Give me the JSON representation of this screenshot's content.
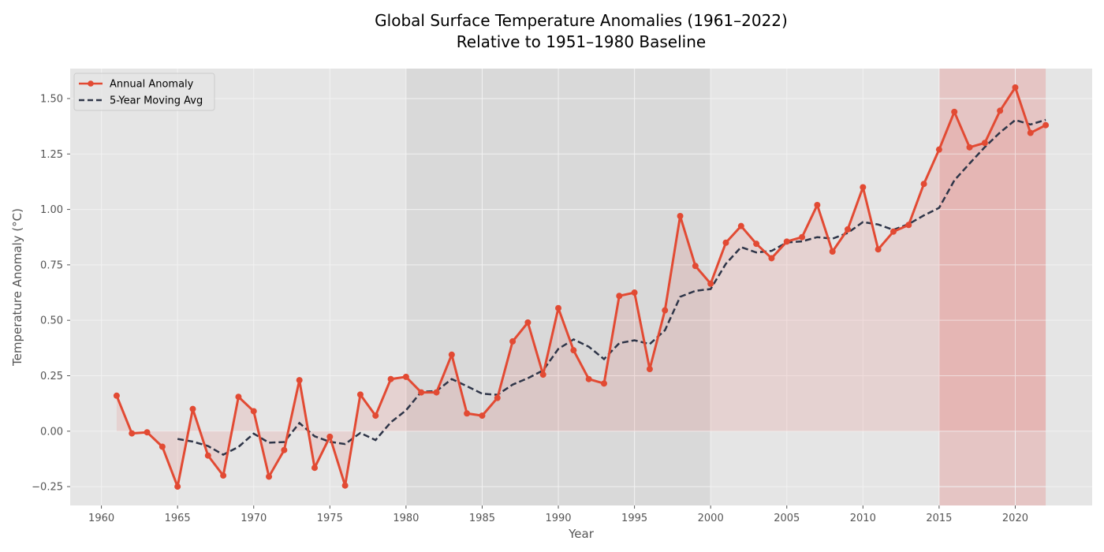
{
  "chart_data": {
    "type": "line",
    "title_line1": "Global Surface Temperature Anomalies (1961–2022)",
    "title_line2": "Relative to 1951–1980 Baseline",
    "xlabel": "Year",
    "ylabel": "Temperature Anomaly (°C)",
    "xlim": [
      1957.95,
      2025.05
    ],
    "ylim": [
      -0.335,
      1.635
    ],
    "xticks": [
      1960,
      1965,
      1970,
      1975,
      1980,
      1985,
      1990,
      1995,
      2000,
      2005,
      2010,
      2015,
      2020
    ],
    "xtick_labels": [
      "1960",
      "1965",
      "1970",
      "1975",
      "1980",
      "1985",
      "1990",
      "1995",
      "2000",
      "2005",
      "2010",
      "2015",
      "2020"
    ],
    "yticks": [
      -0.25,
      0,
      0.25,
      0.5,
      0.75,
      1.0,
      1.25,
      1.5
    ],
    "ytick_labels": [
      "−0.25",
      "0.00",
      "0.25",
      "0.50",
      "0.75",
      "1.00",
      "1.25",
      "1.50"
    ],
    "grid": true,
    "legend_position": "top-left",
    "shaded_regions": [
      {
        "from": 1980,
        "to": 2000,
        "color": "#b0b0b0",
        "opacity": 0.22
      },
      {
        "from": 2015,
        "to": 2022,
        "color": "#e8483f",
        "opacity": 0.2
      }
    ],
    "colors": {
      "annual": "#e24a33",
      "moving_avg": "#2e3548",
      "fill": "#e8483f",
      "plot_bg": "#e5e5e5",
      "grid": "#f2f2f2"
    },
    "x": [
      1961,
      1962,
      1963,
      1964,
      1965,
      1966,
      1967,
      1968,
      1969,
      1970,
      1971,
      1972,
      1973,
      1974,
      1975,
      1976,
      1977,
      1978,
      1979,
      1980,
      1981,
      1982,
      1983,
      1984,
      1985,
      1986,
      1987,
      1988,
      1989,
      1990,
      1991,
      1992,
      1993,
      1994,
      1995,
      1996,
      1997,
      1998,
      1999,
      2000,
      2001,
      2002,
      2003,
      2004,
      2005,
      2006,
      2007,
      2008,
      2009,
      2010,
      2011,
      2012,
      2013,
      2014,
      2015,
      2016,
      2017,
      2018,
      2019,
      2020,
      2021,
      2022
    ],
    "series": [
      {
        "name": "Annual Anomaly",
        "style": "solid-markers",
        "values": [
          0.16,
          -0.01,
          -0.005,
          -0.07,
          -0.25,
          0.1,
          -0.11,
          -0.2,
          0.155,
          0.09,
          -0.205,
          -0.085,
          0.23,
          -0.165,
          -0.025,
          -0.245,
          0.165,
          0.07,
          0.235,
          0.245,
          0.175,
          0.175,
          0.345,
          0.08,
          0.07,
          0.15,
          0.405,
          0.49,
          0.255,
          0.555,
          0.365,
          0.235,
          0.215,
          0.61,
          0.625,
          0.28,
          0.545,
          0.97,
          0.745,
          0.665,
          0.85,
          0.925,
          0.845,
          0.78,
          0.855,
          0.875,
          1.02,
          0.81,
          0.91,
          1.1,
          0.82,
          0.9,
          0.93,
          1.115,
          1.27,
          1.44,
          1.28,
          1.3,
          1.445,
          1.55,
          1.345,
          1.38
        ]
      },
      {
        "name": "5-Year Moving Avg",
        "style": "dashed",
        "values": [
          null,
          null,
          null,
          null,
          -0.035,
          -0.047,
          -0.067,
          -0.106,
          -0.071,
          -0.011,
          -0.052,
          -0.049,
          0.037,
          -0.023,
          -0.048,
          -0.058,
          -0.008,
          -0.04,
          0.04,
          0.094,
          0.178,
          0.181,
          0.235,
          0.203,
          0.169,
          0.164,
          0.21,
          0.239,
          0.274,
          0.371,
          0.414,
          0.381,
          0.325,
          0.397,
          0.41,
          0.393,
          0.455,
          0.606,
          0.633,
          0.641,
          0.755,
          0.83,
          0.806,
          0.813,
          0.851,
          0.856,
          0.875,
          0.868,
          0.894,
          0.943,
          0.932,
          0.908,
          0.934,
          0.973,
          1.007,
          1.131,
          1.207,
          1.281,
          1.347,
          1.403,
          1.383,
          1.404
        ]
      }
    ]
  }
}
